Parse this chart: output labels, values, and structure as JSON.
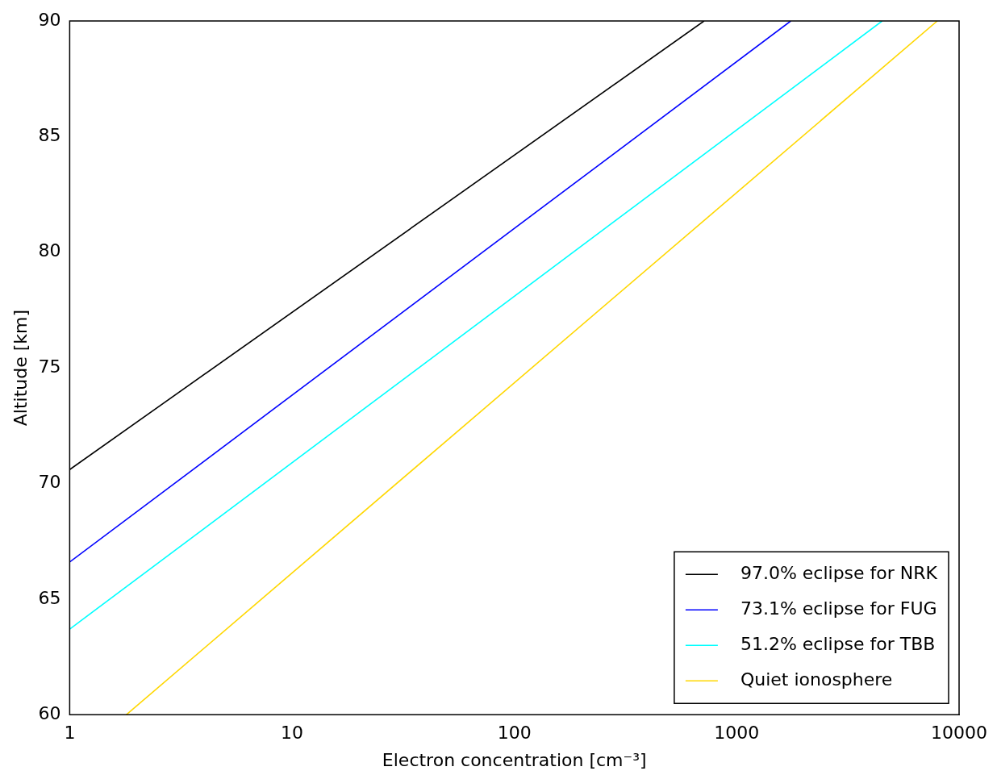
{
  "chart_data": {
    "type": "line",
    "xlabel": "Electron concentration [cm⁻³]",
    "ylabel": "Altitude [km]",
    "log": "x",
    "xlim": [
      1,
      10000
    ],
    "xticks": [
      1,
      10,
      100,
      1000,
      10000
    ],
    "ylim": [
      60,
      90
    ],
    "yticks": [
      60,
      65,
      70,
      75,
      80,
      85,
      90
    ],
    "grid": false,
    "legend": "bottom right",
    "marker": "none",
    "line_style": "solid",
    "series": [
      {
        "name": "97.0% eclipse for NRK",
        "color": "#000000",
        "x": [
          1,
          713
        ],
        "values": [
          70.6,
          90
        ]
      },
      {
        "name": "73.1% eclipse for FUG",
        "color": "#0000ff",
        "x": [
          1,
          1750
        ],
        "values": [
          66.6,
          90
        ]
      },
      {
        "name": "51.2% eclipse for TBB",
        "color": "#00ffff",
        "x": [
          1,
          4510
        ],
        "values": [
          63.7,
          90
        ]
      },
      {
        "name": "Quiet ionosphere",
        "color": "#ffd700",
        "x": [
          1.8,
          7980
        ],
        "values": [
          60,
          90
        ]
      }
    ]
  }
}
